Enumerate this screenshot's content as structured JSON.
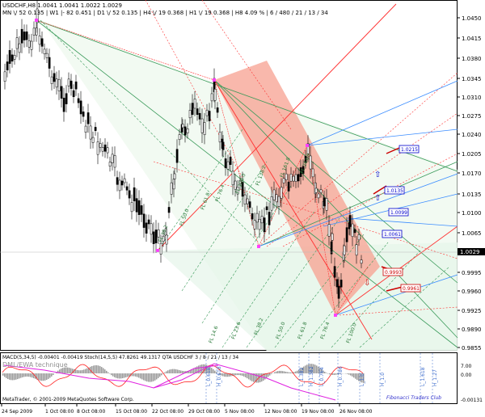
{
  "header": {
    "symbol_line": "USDCHF,H8  1.0041  1.0041  1.0022  1.0029",
    "info_line": "MN  \\/ 52    0.135  |   W1  |- 82    0.451  |   D1  \\/ 52    0.135  |   H4  \\/ 19    0.368  |   H1  \\/ 19    0.368  |   H8    4.09 %  |  6 / 480 / 21 / 13 / 34"
  },
  "price_axis": {
    "labels": [
      "1.0450",
      "1.0415",
      "1.0380",
      "1.0345",
      "1.0310",
      "1.0275",
      "1.0240",
      "1.0205",
      "1.0170",
      "1.0135",
      "1.0100",
      "1.0065",
      "1.0029",
      "0.9995",
      "0.9960",
      "0.9925",
      "0.9890",
      "0.9855"
    ],
    "current": "1.0029"
  },
  "level_boxes": [
    {
      "text": "1.0215",
      "color": "#0000cc"
    },
    {
      "text": "1.0135",
      "color": "#0000cc"
    },
    {
      "text": "1.0099",
      "color": "#0000cc"
    },
    {
      "text": "1.0061",
      "color": "#0000cc"
    },
    {
      "text": "0.9993",
      "color": "#cc0000"
    },
    {
      "text": "0.9961",
      "color": "#cc0000"
    }
  ],
  "fib_labels": [
    "FL 38.2",
    "FL 50.0",
    "FL 61.8",
    "FL 76.4",
    "FL 100.0",
    "FL 138.2",
    "FL 161.8",
    "FL 261.8",
    "FL 14.6",
    "FL 23.6",
    "FL 38.2",
    "FL 50.0",
    "FL 61.8",
    "FL 76.4",
    "FL 100.0"
  ],
  "macd_panel": {
    "header": "MACD(5,34,5)  -0.00401  -0.00419   Stoch(14,5,5)  47.8261  49.1317   QTA USDCHF  3 / 8 / 21 / 13 / 34",
    "sublabel": "DML/EWA technique",
    "axis": [
      "7.00",
      "0.00",
      "-0.00131"
    ],
    "vlines": [
      "L_0.618",
      "H_0.618",
      "L_1.382",
      "H_1.382",
      "L_0.764",
      "H_0.786",
      "L_1.0",
      "H_1.0",
      "L_1.618",
      "H_1.27"
    ],
    "copyright": "MetaTrader, © 2001-2009 MetaQuotes Software Corp.",
    "brand": "Fibonacci Traders Club"
  },
  "time_axis": [
    "24 Sep 2009",
    "1 Oct 08:00",
    "8 Oct 08:00",
    "15 Oct 08:00",
    "22 Oct 08:00",
    "29 Oct 08:00",
    "5 Nov 08:00",
    "12 Nov 08:00",
    "19 Nov 08:00",
    "26 Nov 08:00"
  ],
  "colors": {
    "fan_red": "#ff3030",
    "fan_blue": "#3a8cff",
    "fan_green": "#3a9a5a",
    "macd_pink": "#e020e0",
    "hist_gray": "#9a9a9a",
    "channel_fill": "#f7a090"
  }
}
